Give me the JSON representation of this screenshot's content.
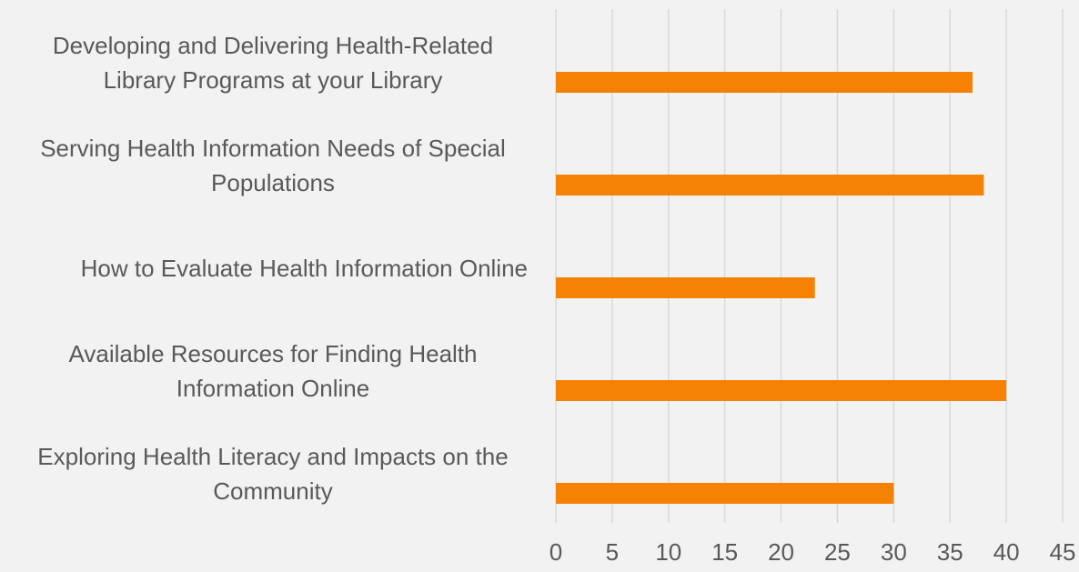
{
  "chart_data": {
    "type": "bar",
    "orientation": "horizontal",
    "categories": [
      "Developing and Delivering Health-Related Library Programs at your Library",
      "Serving Health Information Needs of Special Populations",
      "How to Evaluate Health Information Online",
      "Available Resources for Finding Health Information Online",
      "Exploring Health Literacy and Impacts on the Community"
    ],
    "values": [
      37,
      38,
      23,
      40,
      30
    ],
    "color": "#f58205",
    "xlim": [
      0,
      45
    ],
    "xticks": [
      0,
      5,
      10,
      15,
      20,
      25,
      30,
      35,
      40,
      45
    ],
    "grid": true
  }
}
